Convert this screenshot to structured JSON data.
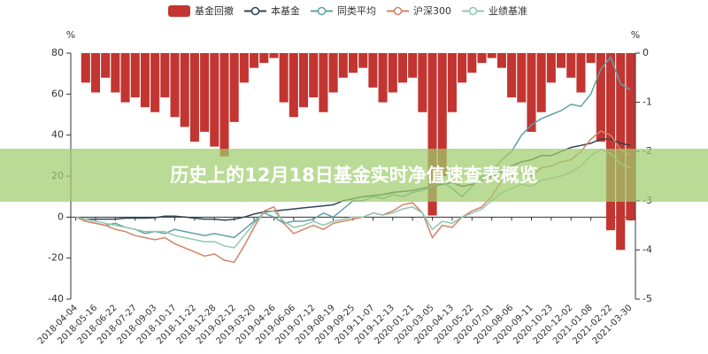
{
  "chart_data": {
    "type": "line",
    "categories": [
      "2018-04-04",
      null,
      "2018-05-16",
      null,
      "2018-06-22",
      null,
      "2018-07-27",
      null,
      "2018-09-03",
      null,
      "2018-10-17",
      null,
      "2018-11-22",
      null,
      "2018-12-28",
      null,
      "2019-02-12",
      null,
      "2019-03-20",
      null,
      "2019-04-26",
      null,
      "2019-06-06",
      null,
      "2019-07-12",
      null,
      "2019-08-19",
      null,
      "2019-09-25",
      null,
      "2019-11-07",
      null,
      "2019-12-13",
      null,
      "2020-01-21",
      null,
      "2020-03-05",
      null,
      "2020-04-13",
      null,
      "2020-05-22",
      null,
      "2020-07-01",
      null,
      "2020-08-06",
      null,
      "2020-09-11",
      null,
      "2020-10-23",
      null,
      "2020-12-02",
      null,
      "2021-01-08",
      null,
      "2021-02-22",
      null,
      "2021-03-30"
    ],
    "series": [
      {
        "name": "基金回撤",
        "type": "bar",
        "axis": "y2",
        "color": "#c23531",
        "values": [
          0,
          -0.6,
          -0.8,
          -0.5,
          -0.8,
          -1.0,
          -0.9,
          -1.1,
          -1.2,
          -0.9,
          -1.3,
          -1.5,
          -1.8,
          -1.6,
          -1.9,
          -2.1,
          -1.4,
          -0.6,
          -0.3,
          -0.2,
          -0.1,
          -1.0,
          -1.3,
          -1.1,
          -0.9,
          -1.2,
          -0.8,
          -0.5,
          -0.4,
          -0.3,
          -0.7,
          -1.0,
          -0.8,
          -0.6,
          -0.5,
          -1.2,
          -3.3,
          -2.5,
          -1.2,
          -0.6,
          -0.4,
          -0.2,
          -0.1,
          -0.3,
          -0.9,
          -1.0,
          -1.6,
          -1.2,
          -0.6,
          -0.3,
          -0.5,
          -0.8,
          -0.2,
          -1.8,
          -3.6,
          -4.0,
          -3.4
        ]
      },
      {
        "name": "本基金",
        "type": "line",
        "color": "#2f4554",
        "values": [
          0,
          -1,
          -1,
          -1,
          -1,
          -0.5,
          -0.5,
          -0.5,
          -0.3,
          0.5,
          0.5,
          0,
          -0.5,
          -1,
          -1,
          -1.5,
          -1,
          0,
          1.5,
          2.5,
          3,
          3.5,
          4,
          4.5,
          5,
          5.5,
          6,
          8,
          9,
          10,
          10.5,
          11,
          12,
          12.5,
          13,
          14,
          15,
          16,
          17,
          15,
          16,
          18,
          20,
          22,
          25,
          27,
          28,
          30,
          30,
          32,
          34,
          35,
          36,
          38,
          38,
          36,
          35
        ]
      },
      {
        "name": "同类平均",
        "type": "line",
        "color": "#61a0a8",
        "values": [
          0,
          -2,
          -3,
          -4,
          -3,
          -5,
          -6,
          -8,
          -7,
          -8,
          -6,
          -7,
          -8,
          -9,
          -8,
          -9,
          -10,
          -6,
          -2,
          2,
          0,
          -3,
          -2,
          -2,
          -1,
          2,
          0,
          4,
          8,
          8,
          10,
          9,
          11,
          10,
          12,
          13,
          15,
          17,
          14,
          10,
          15,
          20,
          22,
          28,
          32,
          40,
          45,
          48,
          50,
          52,
          55,
          54,
          60,
          72,
          78,
          65,
          62
        ]
      },
      {
        "name": "沪深300",
        "type": "line",
        "color": "#d48265",
        "values": [
          0,
          -2,
          -3,
          -4,
          -6,
          -7,
          -9,
          -10,
          -11,
          -10,
          -13,
          -15,
          -17,
          -19,
          -18,
          -21,
          -22,
          -14,
          -5,
          3,
          5,
          -3,
          -8,
          -6,
          -4,
          -6,
          -3,
          -2,
          -1,
          0,
          2,
          1,
          3,
          6,
          7,
          2,
          -10,
          -4,
          -5,
          0,
          3,
          5,
          10,
          18,
          20,
          22,
          20,
          24,
          25,
          27,
          28,
          32,
          38,
          42,
          40,
          33,
          30
        ]
      },
      {
        "name": "业绩基准",
        "type": "line",
        "color": "#91c7ae",
        "values": [
          0,
          -1,
          -2,
          -3,
          -4,
          -5,
          -6,
          -7,
          -7,
          -7,
          -9,
          -10,
          -11,
          -12,
          -12,
          -14,
          -15,
          -9,
          -3,
          2,
          3,
          -2,
          -5,
          -4,
          -2,
          -4,
          -2,
          -1,
          0,
          0,
          2,
          1,
          2,
          4,
          5,
          2,
          -6,
          -2,
          -3,
          0,
          2,
          4,
          8,
          12,
          14,
          16,
          15,
          18,
          19,
          20,
          22,
          25,
          30,
          33,
          31,
          26,
          24
        ]
      }
    ],
    "y_unit": "%",
    "y2_unit": "%",
    "ylim": [
      -40,
      80
    ],
    "yticks": [
      -40,
      -20,
      0,
      20,
      40,
      60,
      80
    ],
    "y2lim": [
      -5,
      0
    ],
    "y2ticks": [
      -5,
      -4,
      -3,
      -2,
      -1,
      0
    ]
  },
  "banner": "历史上的12月18日基金实时净值速查表概览"
}
